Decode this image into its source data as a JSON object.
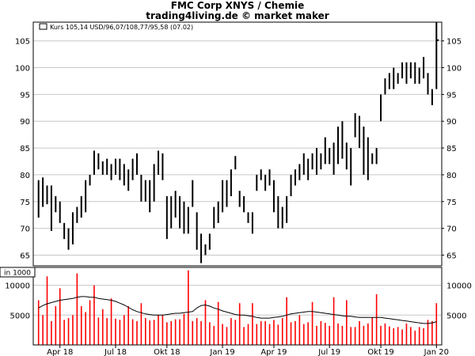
{
  "header": {
    "title": "FMC Corp XNYS / Chemie",
    "subtitle": "trading4living.de © market maker"
  },
  "colors": {
    "bars": "#000000",
    "volume": "#ff0000",
    "avg": "#000000",
    "frame": "#000000",
    "grid": "#c8c8c8"
  },
  "chart_data": [
    {
      "type": "ohlc",
      "legend": "Kurs 105,14 USD/96,07/108,77/95,58 (07.02)",
      "ylim": [
        63,
        108.5
      ],
      "yticks": [
        "65",
        "70",
        "75",
        "80",
        "85",
        "90",
        "95",
        "100",
        "105"
      ],
      "grid": true,
      "bars": [
        [
          79,
          72
        ],
        [
          79.5,
          74
        ],
        [
          78,
          74.5
        ],
        [
          78,
          69.5
        ],
        [
          76,
          73
        ],
        [
          75,
          71
        ],
        [
          71,
          68
        ],
        [
          70,
          66
        ],
        [
          73,
          67
        ],
        [
          74,
          71
        ],
        [
          76,
          72
        ],
        [
          79,
          73
        ],
        [
          80,
          78
        ],
        [
          84.5,
          80
        ],
        [
          84,
          81
        ],
        [
          82.5,
          80
        ],
        [
          83,
          80
        ],
        [
          82,
          79
        ],
        [
          83,
          80
        ],
        [
          83,
          79
        ],
        [
          82,
          78
        ],
        [
          81,
          77
        ],
        [
          83,
          79
        ],
        [
          84,
          80
        ],
        [
          80,
          75
        ],
        [
          79,
          75
        ],
        [
          79,
          73
        ],
        [
          82,
          75
        ],
        [
          84.5,
          80
        ],
        [
          84,
          79
        ],
        [
          76,
          68
        ],
        [
          76,
          70
        ],
        [
          77,
          72
        ],
        [
          76,
          70
        ],
        [
          75,
          69
        ],
        [
          74,
          69
        ],
        [
          79,
          74
        ],
        [
          73,
          66
        ],
        [
          69,
          63.5
        ],
        [
          67,
          65
        ],
        [
          69,
          66
        ],
        [
          74,
          70
        ],
        [
          75,
          71
        ],
        [
          79,
          73
        ],
        [
          79,
          74
        ],
        [
          81,
          76
        ],
        [
          83.5,
          81
        ],
        [
          77,
          74
        ],
        [
          76,
          73
        ],
        [
          73,
          71
        ],
        [
          73,
          69
        ],
        [
          80,
          77
        ],
        [
          81,
          79
        ],
        [
          80,
          77
        ],
        [
          81,
          78
        ],
        [
          79,
          73
        ],
        [
          76,
          70
        ],
        [
          74,
          70
        ],
        [
          76,
          71
        ],
        [
          80,
          76
        ],
        [
          81,
          78
        ],
        [
          82,
          79
        ],
        [
          84,
          80
        ],
        [
          83,
          79
        ],
        [
          84,
          81
        ],
        [
          85,
          80
        ],
        [
          84,
          81
        ],
        [
          87,
          82
        ],
        [
          85,
          82
        ],
        [
          86,
          80
        ],
        [
          89,
          82
        ],
        [
          90,
          83
        ],
        [
          86,
          81
        ],
        [
          85,
          78
        ],
        [
          91.5,
          87
        ],
        [
          91,
          85
        ],
        [
          89,
          80
        ],
        [
          87,
          79
        ],
        [
          84,
          82
        ],
        [
          85,
          82
        ],
        [
          95,
          90
        ],
        [
          98,
          95
        ],
        [
          99,
          96
        ],
        [
          100,
          96
        ],
        [
          99,
          97
        ],
        [
          101,
          98
        ],
        [
          101,
          97
        ],
        [
          101,
          98
        ],
        [
          101,
          97
        ],
        [
          100,
          97
        ],
        [
          102,
          98
        ],
        [
          99,
          95
        ],
        [
          96,
          93
        ],
        [
          108.5,
          96
        ]
      ],
      "last": 105.14
    },
    {
      "type": "bar",
      "title": "in 1000",
      "ylim": [
        0,
        13000
      ],
      "yticks": [
        "5000",
        "10000"
      ],
      "xticks": [
        "Apr 18",
        "Jul 18",
        "Okt 18",
        "Jan 19",
        "Apr 19",
        "Jul 19",
        "Okt 19",
        "Jan 20"
      ],
      "volumes": [
        7500,
        5000,
        11500,
        4000,
        6500,
        9500,
        4200,
        4500,
        5000,
        12000,
        6500,
        5500,
        7500,
        10000,
        4600,
        6000,
        4500,
        7800,
        4400,
        4200,
        5000,
        6500,
        4300,
        4000,
        7000,
        4500,
        4100,
        4200,
        5000,
        5000,
        3800,
        4000,
        4300,
        4300,
        5200,
        12500,
        4000,
        4500,
        4000,
        7500,
        3800,
        3200,
        7200,
        3500,
        3000,
        4500,
        4200,
        7000,
        3000,
        3500,
        7000,
        3500,
        4000,
        4000,
        3500,
        4200,
        3400,
        4500,
        8000,
        3800,
        4000,
        5000,
        3500,
        3800,
        7200,
        3200,
        4000,
        3700,
        3200,
        8000,
        3600,
        3200,
        7500,
        3000,
        3000,
        4000,
        3200,
        3600,
        4600,
        8500,
        3200,
        3600,
        3100,
        2800,
        3000,
        2600,
        3600,
        3000,
        2400,
        3000,
        2800,
        4200,
        4000,
        7000
      ],
      "avg": [
        6200,
        6600,
        6900,
        7100,
        7300,
        7500,
        7600,
        7700,
        7800,
        8000,
        8100,
        8100,
        8000,
        8000,
        7800,
        7700,
        7600,
        7500,
        7300,
        7000,
        6700,
        6300,
        5900,
        5600,
        5400,
        5200,
        5100,
        5000,
        5000,
        5000,
        5100,
        5200,
        5300,
        5300,
        5400,
        5500,
        5600,
        6200,
        6600,
        6700,
        6500,
        6200,
        6000,
        5700,
        5500,
        5300,
        5100,
        5000,
        5000,
        4900,
        4800,
        4600,
        4500,
        4500,
        4500,
        4600,
        4700,
        4800,
        5000,
        5200,
        5300,
        5400,
        5500,
        5600,
        5600,
        5500,
        5400,
        5300,
        5200,
        5100,
        5000,
        4900,
        4800,
        4800,
        4700,
        4600,
        4600,
        4600,
        4600,
        4600,
        4600,
        4500,
        4400,
        4300,
        4200,
        4100,
        4000,
        3900,
        3800,
        3700,
        3600,
        3600,
        3700,
        3900
      ]
    }
  ]
}
